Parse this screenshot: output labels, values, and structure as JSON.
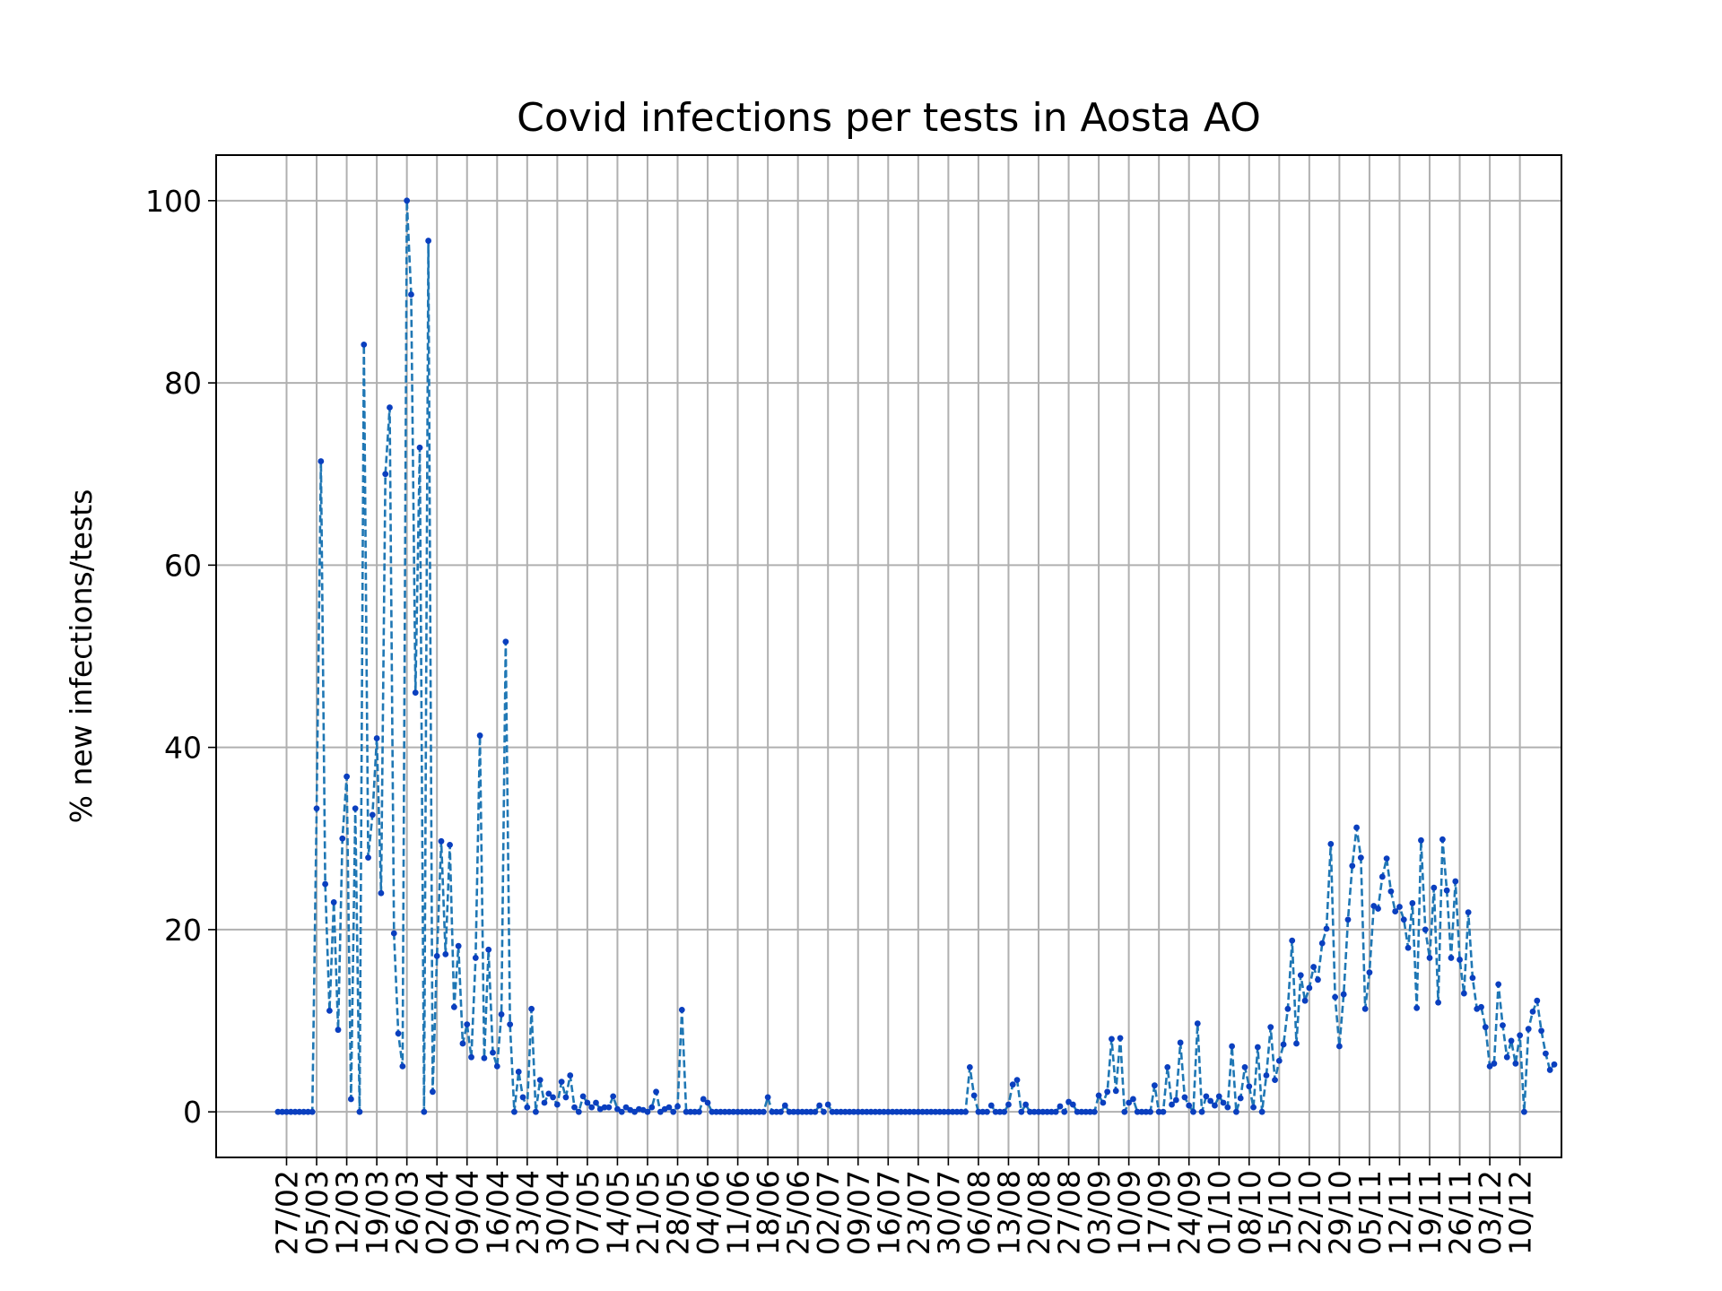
{
  "chart_data": {
    "type": "line",
    "title": "Covid infections per tests in Aosta AO",
    "xlabel": "",
    "ylabel": "% new infections/tests",
    "ylim": [
      -5,
      105
    ],
    "yticks": [
      0,
      20,
      40,
      60,
      80,
      100
    ],
    "grid": true,
    "legend": "none",
    "line_color": "#1f77b4",
    "marker_color": "#0a3fbf",
    "line_style": "dashed",
    "x_tick_labels": [
      "27/02",
      "05/03",
      "12/03",
      "19/03",
      "26/03",
      "02/04",
      "09/04",
      "16/04",
      "23/04",
      "30/04",
      "07/05",
      "14/05",
      "21/05",
      "28/05",
      "04/06",
      "11/06",
      "18/06",
      "25/06",
      "02/07",
      "09/07",
      "16/07",
      "23/07",
      "30/07",
      "06/08",
      "13/08",
      "20/08",
      "27/08",
      "03/09",
      "10/09",
      "17/09",
      "24/09",
      "01/10",
      "08/10",
      "15/10",
      "22/10",
      "29/10",
      "05/11",
      "12/11",
      "19/11",
      "26/11",
      "03/12",
      "10/12"
    ],
    "x_start": "25/02",
    "series": [
      {
        "values": [
          0,
          0,
          0,
          0,
          0,
          0,
          0,
          0,
          0,
          33.3,
          71.4,
          25,
          11.1,
          23,
          9,
          30,
          36.8,
          1.4,
          33.3,
          0,
          84.2,
          27.9,
          32.6,
          41,
          24,
          70,
          77.3,
          19.6,
          8.6,
          5,
          100,
          89.7,
          46,
          72.9,
          0,
          95.6,
          2.2,
          17.1,
          29.7,
          17.3,
          29.3,
          11.5,
          18.2,
          7.5,
          9.6,
          6,
          16.9,
          41.3,
          5.9,
          17.8,
          6.5,
          5,
          10.7,
          51.6,
          9.6,
          0,
          4.4,
          1.6,
          0.5,
          11.3,
          0,
          3.5,
          1,
          2,
          1.6,
          0.8,
          3.3,
          1.6,
          4,
          0.5,
          0,
          1.7,
          1,
          0.5,
          1,
          0.3,
          0.5,
          0.5,
          1.7,
          0.3,
          0,
          0.5,
          0.2,
          0,
          0.3,
          0.2,
          0,
          0.5,
          2.2,
          0,
          0.3,
          0.5,
          0,
          0.6,
          11.2,
          0,
          0,
          0,
          0,
          1.4,
          1,
          0,
          0,
          0,
          0,
          0,
          0,
          0,
          0,
          0,
          0,
          0,
          0,
          0,
          1.6,
          0,
          0,
          0,
          0.7,
          0,
          0,
          0,
          0,
          0,
          0,
          0,
          0.7,
          0,
          0.8,
          0,
          0,
          0,
          0,
          0,
          0,
          0,
          0,
          0,
          0,
          0,
          0,
          0,
          0,
          0,
          0,
          0,
          0,
          0,
          0,
          0,
          0,
          0,
          0,
          0,
          0,
          0,
          0,
          0,
          0,
          0,
          0,
          4.9,
          1.8,
          0,
          0,
          0,
          0.7,
          0,
          0,
          0,
          0.8,
          3,
          3.5,
          0,
          0.8,
          0,
          0,
          0,
          0,
          0,
          0,
          0,
          0.6,
          0,
          1.1,
          0.8,
          0,
          0,
          0,
          0,
          0,
          1.8,
          1,
          2.2,
          8,
          2.3,
          8.1,
          0,
          1,
          1.4,
          0,
          0,
          0,
          0,
          2.9,
          0,
          0,
          4.9,
          0.8,
          1.3,
          7.6,
          1.6,
          0.7,
          0,
          9.7,
          0,
          1.7,
          1.2,
          0.7,
          1.7,
          1,
          0.5,
          7.2,
          0,
          1.5,
          4.9,
          2.8,
          0.5,
          7.1,
          0,
          4,
          9.3,
          3.5,
          5.6,
          7.4,
          11.3,
          18.8,
          7.5,
          15,
          12.2,
          13.6,
          15.9,
          14.5,
          18.5,
          20.1,
          29.4,
          12.6,
          7.2,
          12.9,
          21.1,
          27,
          31.2,
          27.9,
          11.3,
          15.3,
          22.6,
          22.3,
          25.8,
          27.8,
          24.2,
          22,
          22.5,
          21.1,
          18,
          22.9,
          11.4,
          29.8,
          20,
          16.9,
          24.6,
          12,
          29.9,
          24.3,
          16.9,
          25.3,
          16.7,
          13,
          21.9,
          14.7,
          11.3,
          11.5,
          9.3,
          5,
          5.3,
          14,
          9.5,
          6,
          7.8,
          5.3,
          8.4,
          0,
          9.1,
          11,
          12.2,
          8.9,
          6.4,
          4.6,
          5.2
        ]
      }
    ]
  }
}
